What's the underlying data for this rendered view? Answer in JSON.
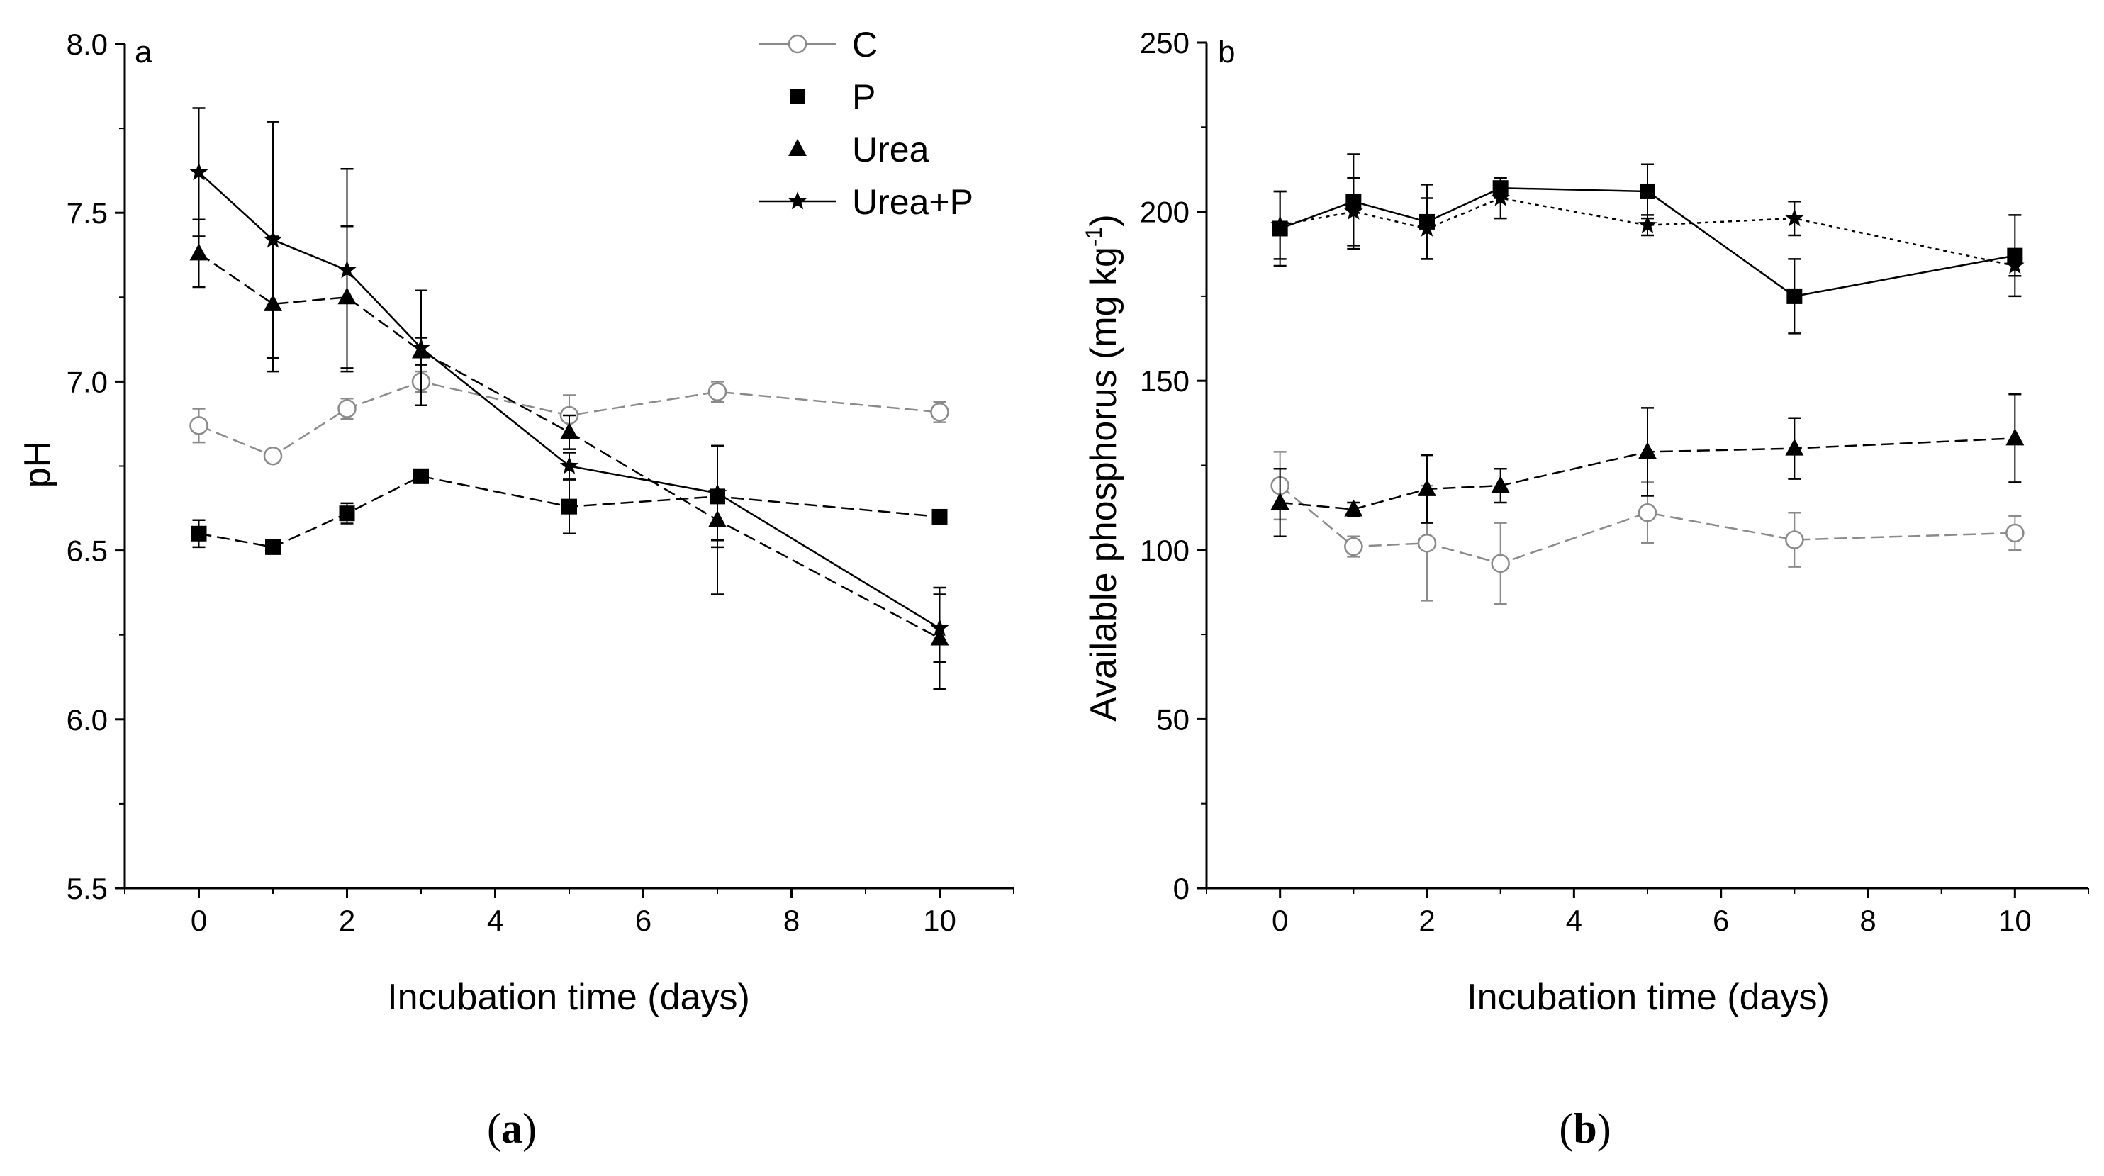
{
  "chart_data": [
    {
      "type": "line",
      "panel_label": "a",
      "caption": "(a)",
      "caption_open": "(",
      "caption_letter": "a",
      "caption_close": ")",
      "xlabel": "Incubation time (days)",
      "ylabel": "pH",
      "xlim": [
        -1,
        11
      ],
      "ylim": [
        5.5,
        8.0
      ],
      "xticks": [
        0,
        2,
        4,
        6,
        8,
        10
      ],
      "xtick_labels": [
        "0",
        "2",
        "4",
        "6",
        "8",
        "10"
      ],
      "yticks": [
        5.5,
        6.0,
        6.5,
        7.0,
        7.5,
        8.0
      ],
      "ytick_labels": [
        "5.5",
        "6.0",
        "6.5",
        "7.0",
        "7.5",
        "8.0"
      ],
      "x": [
        0,
        1,
        2,
        3,
        5,
        7,
        10
      ],
      "legend": {
        "position": "top-right",
        "entries": [
          {
            "label": "C",
            "marker": "open-circle",
            "line": "solid-light"
          },
          {
            "label": "P",
            "marker": "square",
            "line": "none"
          },
          {
            "label": "Urea",
            "marker": "triangle",
            "line": "none"
          },
          {
            "label": "Urea+P",
            "marker": "star",
            "line": "solid"
          }
        ]
      },
      "series": [
        {
          "name": "C",
          "marker": "open-circle",
          "line": "dashed-gray",
          "values": [
            6.87,
            6.78,
            6.92,
            7.0,
            6.9,
            6.97,
            6.91
          ],
          "errors": [
            0.05,
            0.02,
            0.03,
            0.03,
            0.06,
            0.03,
            0.03
          ]
        },
        {
          "name": "P",
          "marker": "square",
          "line": "dashed",
          "values": [
            6.55,
            6.51,
            6.61,
            6.72,
            6.63,
            6.66,
            6.6
          ],
          "errors": [
            0.04,
            0.02,
            0.03,
            0.02,
            0.08,
            0.15,
            0.02
          ]
        },
        {
          "name": "Urea",
          "marker": "triangle",
          "line": "dashed",
          "values": [
            7.38,
            7.23,
            7.25,
            7.09,
            6.85,
            6.59,
            6.24
          ],
          "errors": [
            0.1,
            0.2,
            0.21,
            0.04,
            0.05,
            0.22,
            0.15
          ]
        },
        {
          "name": "Urea+P",
          "marker": "star",
          "line": "solid",
          "values": [
            7.62,
            7.42,
            7.33,
            7.1,
            6.75,
            6.67,
            6.27
          ],
          "errors": [
            0.19,
            0.35,
            0.3,
            0.17,
            0.04,
            0.14,
            0.1
          ]
        }
      ]
    },
    {
      "type": "line",
      "panel_label": "b",
      "caption": "(b)",
      "caption_open": "(",
      "caption_letter": "b",
      "caption_close": ")",
      "xlabel": "Incubation time (days)",
      "ylabel": "Available phosphorus (mg kg",
      "ylabel_sup": "-1",
      "ylabel_end": ")",
      "xlim": [
        -1,
        11
      ],
      "ylim": [
        0,
        250
      ],
      "xticks": [
        0,
        2,
        4,
        6,
        8,
        10
      ],
      "xtick_labels": [
        "0",
        "2",
        "4",
        "6",
        "8",
        "10"
      ],
      "yticks": [
        0,
        50,
        100,
        150,
        200,
        250
      ],
      "ytick_labels": [
        "0",
        "50",
        "100",
        "150",
        "200",
        "250"
      ],
      "x": [
        0,
        1,
        2,
        3,
        5,
        7,
        10
      ],
      "series": [
        {
          "name": "C",
          "marker": "open-circle",
          "line": "dashed-gray",
          "values": [
            119,
            101,
            102,
            96,
            111,
            103,
            105
          ],
          "errors": [
            10,
            3,
            17,
            12,
            9,
            8,
            5
          ]
        },
        {
          "name": "P",
          "marker": "square",
          "line": "solid",
          "values": [
            195,
            203,
            197,
            207,
            206,
            175,
            187
          ],
          "errors": [
            11,
            14,
            11,
            3,
            8,
            11,
            12
          ]
        },
        {
          "name": "Urea",
          "marker": "triangle",
          "line": "dashed",
          "values": [
            114,
            112,
            118,
            119,
            129,
            130,
            133
          ],
          "errors": [
            10,
            2,
            10,
            5,
            13,
            9,
            13
          ]
        },
        {
          "name": "Urea+P",
          "marker": "star",
          "line": "dotted",
          "values": [
            196,
            200,
            195,
            204,
            196,
            198,
            184
          ],
          "errors": [
            10,
            10,
            9,
            6,
            3,
            5,
            3
          ]
        }
      ]
    }
  ]
}
